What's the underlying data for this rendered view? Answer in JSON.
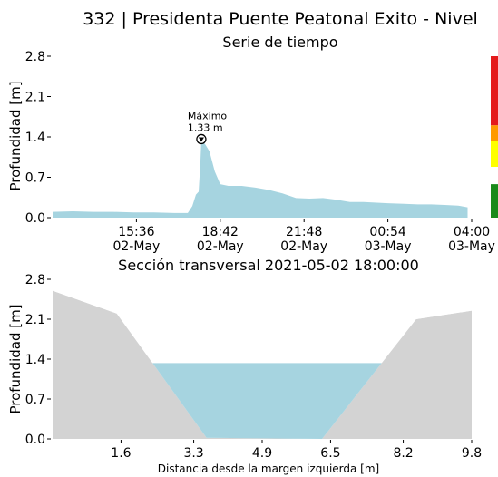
{
  "figure": {
    "title": "332 | Presidenta Puente Peatonal Exito - Nivel"
  },
  "colors": {
    "water": "#a6d4e0",
    "terrain": "#d3d3d3",
    "level_red": "#e41a1c",
    "level_orange": "#ff9a00",
    "level_yellow": "#ffff00",
    "level_green": "#1a8a1a"
  },
  "chart_data": [
    {
      "type": "area",
      "title": "Serie de tiempo",
      "ylabel": "Profundidad [m]",
      "xlabel": "",
      "ylim": [
        0.0,
        2.8
      ],
      "yticks": [
        "0.0",
        "0.7",
        "1.4",
        "2.1",
        "2.8"
      ],
      "xticks": [
        {
          "time": "15:36",
          "date": "02-May"
        },
        {
          "time": "18:42",
          "date": "02-May"
        },
        {
          "time": "21:48",
          "date": "02-May"
        },
        {
          "time": "00:54",
          "date": "03-May"
        },
        {
          "time": "04:00",
          "date": "03-May"
        }
      ],
      "x_start": "2021-05-02 12:30",
      "x_end": "2021-05-03 04:00",
      "series": [
        {
          "points": [
            [
              "2021-05-02 12:30",
              0.1
            ],
            [
              "2021-05-02 13:15",
              0.11
            ],
            [
              "2021-05-02 14:00",
              0.1
            ],
            [
              "2021-05-02 14:45",
              0.1
            ],
            [
              "2021-05-02 15:30",
              0.09
            ],
            [
              "2021-05-02 16:15",
              0.09
            ],
            [
              "2021-05-02 17:00",
              0.08
            ],
            [
              "2021-05-02 17:30",
              0.08
            ],
            [
              "2021-05-02 17:40",
              0.2
            ],
            [
              "2021-05-02 17:48",
              0.4
            ],
            [
              "2021-05-02 17:54",
              0.45
            ],
            [
              "2021-05-02 17:58",
              0.95
            ],
            [
              "2021-05-02 18:00",
              1.33
            ],
            [
              "2021-05-02 18:08",
              1.28
            ],
            [
              "2021-05-02 18:18",
              1.15
            ],
            [
              "2021-05-02 18:30",
              0.8
            ],
            [
              "2021-05-02 18:42",
              0.58
            ],
            [
              "2021-05-02 19:00",
              0.55
            ],
            [
              "2021-05-02 19:30",
              0.55
            ],
            [
              "2021-05-02 20:00",
              0.52
            ],
            [
              "2021-05-02 20:30",
              0.48
            ],
            [
              "2021-05-02 21:00",
              0.42
            ],
            [
              "2021-05-02 21:30",
              0.34
            ],
            [
              "2021-05-02 22:00",
              0.33
            ],
            [
              "2021-05-02 22:30",
              0.34
            ],
            [
              "2021-05-02 23:00",
              0.31
            ],
            [
              "2021-05-02 23:30",
              0.27
            ],
            [
              "2021-05-03 00:00",
              0.27
            ],
            [
              "2021-05-03 00:54",
              0.25
            ],
            [
              "2021-05-03 01:30",
              0.24
            ],
            [
              "2021-05-03 02:00",
              0.23
            ],
            [
              "2021-05-03 02:30",
              0.23
            ],
            [
              "2021-05-03 03:00",
              0.22
            ],
            [
              "2021-05-03 03:30",
              0.21
            ],
            [
              "2021-05-03 03:51",
              0.18
            ]
          ]
        }
      ],
      "annotations": [
        {
          "label": "Máximo",
          "value_text": "1.33 m",
          "x": "2021-05-02 18:00",
          "y": 1.33
        }
      ],
      "level_bar": [
        "red",
        "orange",
        "yellow",
        "none",
        "green"
      ]
    },
    {
      "type": "area",
      "title": "Sección transversal 2021-05-02 18:00:00",
      "ylabel": "Profundidad [m]",
      "xlabel": "Distancia desde la margen izquierda [m]",
      "xlim": [
        0.0,
        9.8
      ],
      "ylim": [
        0.0,
        2.8
      ],
      "xticks": [
        "1.6",
        "3.3",
        "4.9",
        "6.5",
        "8.2",
        "9.8"
      ],
      "yticks": [
        "0.0",
        "0.7",
        "1.4",
        "2.1",
        "2.8"
      ],
      "terrain": {
        "x": [
          0.0,
          1.5,
          3.6,
          6.3,
          8.5,
          9.8
        ],
        "y": [
          2.6,
          2.2,
          0.02,
          0.0,
          2.1,
          2.25
        ]
      },
      "water_level": 1.33
    }
  ]
}
